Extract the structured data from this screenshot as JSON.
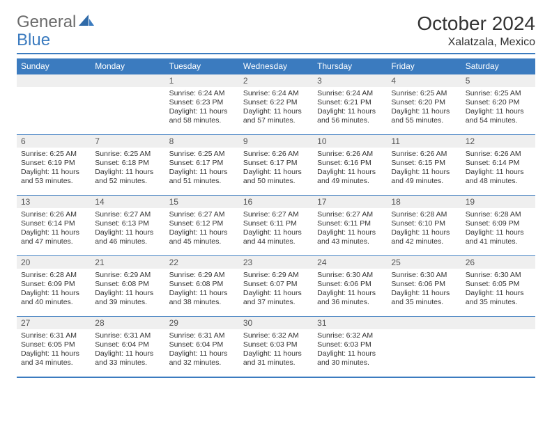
{
  "logo": {
    "general": "General",
    "blue": "Blue"
  },
  "title": "October 2024",
  "location": "Xalatzala, Mexico",
  "colors": {
    "accent": "#3b7bbf",
    "header_bg": "#3b7bbf",
    "header_text": "#ffffff",
    "datenum_bg": "#efefef",
    "text": "#333333",
    "logo_gray": "#6b6b6b"
  },
  "day_names": [
    "Sunday",
    "Monday",
    "Tuesday",
    "Wednesday",
    "Thursday",
    "Friday",
    "Saturday"
  ],
  "weeks": [
    [
      null,
      null,
      {
        "n": "1",
        "sunrise": "Sunrise: 6:24 AM",
        "sunset": "Sunset: 6:23 PM",
        "daylight": "Daylight: 11 hours and 58 minutes."
      },
      {
        "n": "2",
        "sunrise": "Sunrise: 6:24 AM",
        "sunset": "Sunset: 6:22 PM",
        "daylight": "Daylight: 11 hours and 57 minutes."
      },
      {
        "n": "3",
        "sunrise": "Sunrise: 6:24 AM",
        "sunset": "Sunset: 6:21 PM",
        "daylight": "Daylight: 11 hours and 56 minutes."
      },
      {
        "n": "4",
        "sunrise": "Sunrise: 6:25 AM",
        "sunset": "Sunset: 6:20 PM",
        "daylight": "Daylight: 11 hours and 55 minutes."
      },
      {
        "n": "5",
        "sunrise": "Sunrise: 6:25 AM",
        "sunset": "Sunset: 6:20 PM",
        "daylight": "Daylight: 11 hours and 54 minutes."
      }
    ],
    [
      {
        "n": "6",
        "sunrise": "Sunrise: 6:25 AM",
        "sunset": "Sunset: 6:19 PM",
        "daylight": "Daylight: 11 hours and 53 minutes."
      },
      {
        "n": "7",
        "sunrise": "Sunrise: 6:25 AM",
        "sunset": "Sunset: 6:18 PM",
        "daylight": "Daylight: 11 hours and 52 minutes."
      },
      {
        "n": "8",
        "sunrise": "Sunrise: 6:25 AM",
        "sunset": "Sunset: 6:17 PM",
        "daylight": "Daylight: 11 hours and 51 minutes."
      },
      {
        "n": "9",
        "sunrise": "Sunrise: 6:26 AM",
        "sunset": "Sunset: 6:17 PM",
        "daylight": "Daylight: 11 hours and 50 minutes."
      },
      {
        "n": "10",
        "sunrise": "Sunrise: 6:26 AM",
        "sunset": "Sunset: 6:16 PM",
        "daylight": "Daylight: 11 hours and 49 minutes."
      },
      {
        "n": "11",
        "sunrise": "Sunrise: 6:26 AM",
        "sunset": "Sunset: 6:15 PM",
        "daylight": "Daylight: 11 hours and 49 minutes."
      },
      {
        "n": "12",
        "sunrise": "Sunrise: 6:26 AM",
        "sunset": "Sunset: 6:14 PM",
        "daylight": "Daylight: 11 hours and 48 minutes."
      }
    ],
    [
      {
        "n": "13",
        "sunrise": "Sunrise: 6:26 AM",
        "sunset": "Sunset: 6:14 PM",
        "daylight": "Daylight: 11 hours and 47 minutes."
      },
      {
        "n": "14",
        "sunrise": "Sunrise: 6:27 AM",
        "sunset": "Sunset: 6:13 PM",
        "daylight": "Daylight: 11 hours and 46 minutes."
      },
      {
        "n": "15",
        "sunrise": "Sunrise: 6:27 AM",
        "sunset": "Sunset: 6:12 PM",
        "daylight": "Daylight: 11 hours and 45 minutes."
      },
      {
        "n": "16",
        "sunrise": "Sunrise: 6:27 AM",
        "sunset": "Sunset: 6:11 PM",
        "daylight": "Daylight: 11 hours and 44 minutes."
      },
      {
        "n": "17",
        "sunrise": "Sunrise: 6:27 AM",
        "sunset": "Sunset: 6:11 PM",
        "daylight": "Daylight: 11 hours and 43 minutes."
      },
      {
        "n": "18",
        "sunrise": "Sunrise: 6:28 AM",
        "sunset": "Sunset: 6:10 PM",
        "daylight": "Daylight: 11 hours and 42 minutes."
      },
      {
        "n": "19",
        "sunrise": "Sunrise: 6:28 AM",
        "sunset": "Sunset: 6:09 PM",
        "daylight": "Daylight: 11 hours and 41 minutes."
      }
    ],
    [
      {
        "n": "20",
        "sunrise": "Sunrise: 6:28 AM",
        "sunset": "Sunset: 6:09 PM",
        "daylight": "Daylight: 11 hours and 40 minutes."
      },
      {
        "n": "21",
        "sunrise": "Sunrise: 6:29 AM",
        "sunset": "Sunset: 6:08 PM",
        "daylight": "Daylight: 11 hours and 39 minutes."
      },
      {
        "n": "22",
        "sunrise": "Sunrise: 6:29 AM",
        "sunset": "Sunset: 6:08 PM",
        "daylight": "Daylight: 11 hours and 38 minutes."
      },
      {
        "n": "23",
        "sunrise": "Sunrise: 6:29 AM",
        "sunset": "Sunset: 6:07 PM",
        "daylight": "Daylight: 11 hours and 37 minutes."
      },
      {
        "n": "24",
        "sunrise": "Sunrise: 6:30 AM",
        "sunset": "Sunset: 6:06 PM",
        "daylight": "Daylight: 11 hours and 36 minutes."
      },
      {
        "n": "25",
        "sunrise": "Sunrise: 6:30 AM",
        "sunset": "Sunset: 6:06 PM",
        "daylight": "Daylight: 11 hours and 35 minutes."
      },
      {
        "n": "26",
        "sunrise": "Sunrise: 6:30 AM",
        "sunset": "Sunset: 6:05 PM",
        "daylight": "Daylight: 11 hours and 35 minutes."
      }
    ],
    [
      {
        "n": "27",
        "sunrise": "Sunrise: 6:31 AM",
        "sunset": "Sunset: 6:05 PM",
        "daylight": "Daylight: 11 hours and 34 minutes."
      },
      {
        "n": "28",
        "sunrise": "Sunrise: 6:31 AM",
        "sunset": "Sunset: 6:04 PM",
        "daylight": "Daylight: 11 hours and 33 minutes."
      },
      {
        "n": "29",
        "sunrise": "Sunrise: 6:31 AM",
        "sunset": "Sunset: 6:04 PM",
        "daylight": "Daylight: 11 hours and 32 minutes."
      },
      {
        "n": "30",
        "sunrise": "Sunrise: 6:32 AM",
        "sunset": "Sunset: 6:03 PM",
        "daylight": "Daylight: 11 hours and 31 minutes."
      },
      {
        "n": "31",
        "sunrise": "Sunrise: 6:32 AM",
        "sunset": "Sunset: 6:03 PM",
        "daylight": "Daylight: 11 hours and 30 minutes."
      },
      null,
      null
    ]
  ]
}
